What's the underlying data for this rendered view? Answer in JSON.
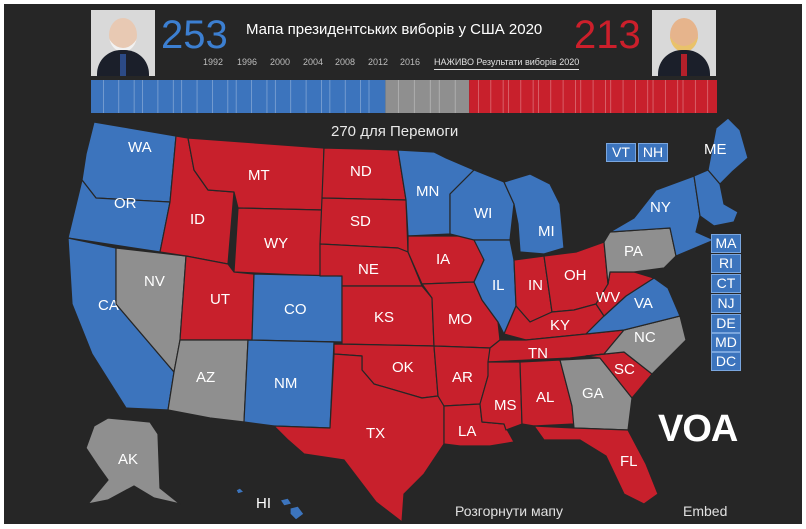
{
  "header": {
    "title": "Мапа президентських виборів у США 2020",
    "dem_votes": "253",
    "rep_votes": "213",
    "years": [
      "1992",
      "1996",
      "2000",
      "2004",
      "2008",
      "2012",
      "2016"
    ],
    "live_label": "НАЖИВО Результати виборів 2020"
  },
  "colors": {
    "dem": "#3c74bd",
    "rep": "#c8202c",
    "undecided": "#8f8f8f",
    "background": "#262626"
  },
  "bar": {
    "label": "270 для Перемоги",
    "dem": 253,
    "undecided": 72,
    "rep": 213,
    "total": 538
  },
  "states": {
    "WA": "dem",
    "OR": "dem",
    "CA": "dem",
    "NV": "undecided",
    "ID": "rep",
    "MT": "rep",
    "WY": "rep",
    "UT": "rep",
    "CO": "dem",
    "AZ": "undecided",
    "NM": "dem",
    "ND": "rep",
    "SD": "rep",
    "NE": "rep",
    "KS": "rep",
    "OK": "rep",
    "TX": "rep",
    "MN": "dem",
    "IA": "rep",
    "MO": "rep",
    "AR": "rep",
    "LA": "rep",
    "WI": "dem",
    "IL": "dem",
    "MI": "dem",
    "IN": "rep",
    "OH": "rep",
    "KY": "rep",
    "TN": "rep",
    "MS": "rep",
    "AL": "rep",
    "GA": "undecided",
    "FL": "rep",
    "SC": "rep",
    "NC": "undecided",
    "VA": "dem",
    "WV": "rep",
    "PA": "undecided",
    "NY": "dem",
    "ME": "dem",
    "AK": "undecided",
    "HI": "dem"
  },
  "small_states": [
    "VT",
    "NH",
    "MA",
    "RI",
    "CT",
    "NJ",
    "DE",
    "MD",
    "DC"
  ],
  "footer": {
    "expand_label": "Розгорнути мапу",
    "embed_label": "Embed",
    "logo": "VOA"
  }
}
